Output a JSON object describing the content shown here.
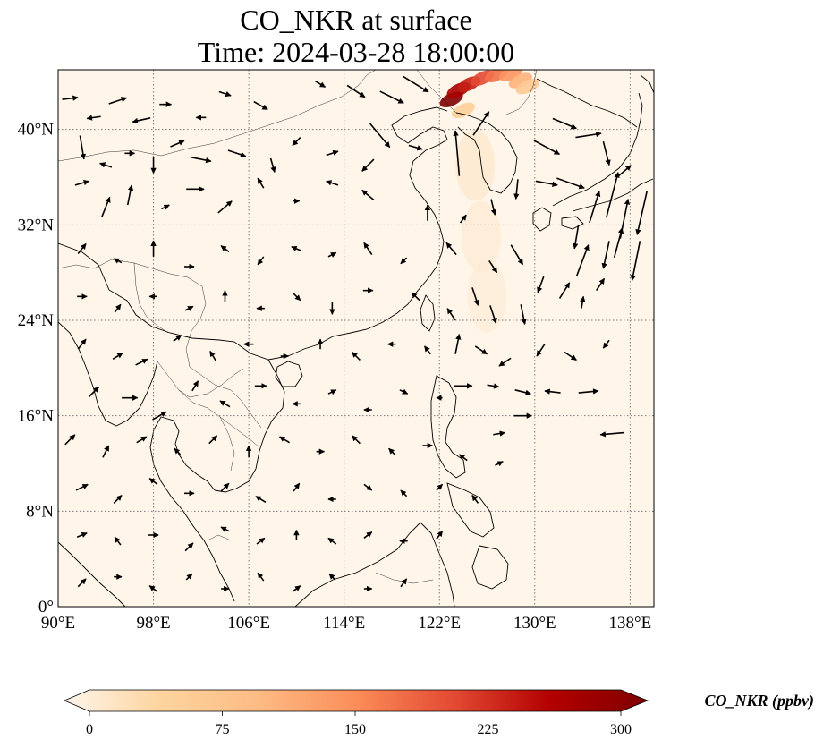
{
  "title": {
    "line1": "CO_NKR at surface",
    "line2": "Time: 2024-03-28 18:00:00"
  },
  "map": {
    "lon_range": [
      90,
      140
    ],
    "lat_range": [
      0,
      45
    ],
    "x_ticks": [
      {
        "lon": 90,
        "label": "90°E"
      },
      {
        "lon": 98,
        "label": "98°E"
      },
      {
        "lon": 106,
        "label": "106°E"
      },
      {
        "lon": 114,
        "label": "114°E"
      },
      {
        "lon": 122,
        "label": "122°E"
      },
      {
        "lon": 130,
        "label": "130°E"
      },
      {
        "lon": 138,
        "label": "138°E"
      }
    ],
    "y_ticks": [
      {
        "lat": 0,
        "label": "0°"
      },
      {
        "lat": 8,
        "label": "8°N"
      },
      {
        "lat": 16,
        "label": "16°N"
      },
      {
        "lat": 24,
        "label": "24°N"
      },
      {
        "lat": 32,
        "label": "32°N"
      },
      {
        "lat": 40,
        "label": "40°N"
      }
    ],
    "gridlines": true,
    "background_color": "#fff6e9",
    "coastline_color": "#000000",
    "grid_color": "#777777"
  },
  "colorbar": {
    "label": "CO_NKR (ppbv)",
    "min": 0,
    "max": 300,
    "ticks": [
      {
        "value": 0,
        "label": "0"
      },
      {
        "value": 75,
        "label": "75"
      },
      {
        "value": 150,
        "label": "150"
      },
      {
        "value": 225,
        "label": "225"
      },
      {
        "value": 300,
        "label": "300"
      }
    ],
    "colormap": [
      "#fff5eb",
      "#fdd49e",
      "#fdbb84",
      "#fc8d59",
      "#e34a33",
      "#b30000",
      "#7f0000"
    ],
    "extend": "both"
  },
  "plume": [
    {
      "lon": 123.0,
      "lat": 42.5,
      "value": 300
    },
    {
      "lon": 123.6,
      "lat": 43.3,
      "value": 260
    },
    {
      "lon": 124.5,
      "lat": 43.8,
      "value": 230
    },
    {
      "lon": 125.6,
      "lat": 44.3,
      "value": 200
    },
    {
      "lon": 126.8,
      "lat": 44.6,
      "value": 170
    },
    {
      "lon": 128.0,
      "lat": 44.7,
      "value": 140
    },
    {
      "lon": 128.8,
      "lat": 44.1,
      "value": 110
    },
    {
      "lon": 129.4,
      "lat": 43.6,
      "value": 70
    },
    {
      "lon": 124.0,
      "lat": 41.6,
      "value": 60
    },
    {
      "lon": 125.0,
      "lat": 37.0,
      "value": 25
    },
    {
      "lon": 125.5,
      "lat": 31.0,
      "value": 18
    },
    {
      "lon": 126.0,
      "lat": 26.0,
      "value": 15
    }
  ],
  "wind_vectors": [
    {
      "lon": 91.0,
      "lat": 42.6,
      "u": 0.8,
      "v": 0.1
    },
    {
      "lon": 93.0,
      "lat": 41.0,
      "u": -0.7,
      "v": -0.1
    },
    {
      "lon": 95.0,
      "lat": 42.4,
      "u": 0.9,
      "v": 0.3
    },
    {
      "lon": 97.0,
      "lat": 40.8,
      "u": -0.9,
      "v": -0.2
    },
    {
      "lon": 99.0,
      "lat": 42.1,
      "u": 0.6,
      "v": 0.0
    },
    {
      "lon": 102.0,
      "lat": 41.0,
      "u": -0.5,
      "v": 0.0
    },
    {
      "lon": 104.0,
      "lat": 43.0,
      "u": 0.6,
      "v": -0.2
    },
    {
      "lon": 107.0,
      "lat": 42.0,
      "u": 0.7,
      "v": -0.4
    },
    {
      "lon": 112.0,
      "lat": 43.8,
      "u": 0.5,
      "v": -0.3
    },
    {
      "lon": 115.0,
      "lat": 43.2,
      "u": 0.9,
      "v": -0.6
    },
    {
      "lon": 118.0,
      "lat": 42.7,
      "u": 1.2,
      "v": -0.6
    },
    {
      "lon": 120.0,
      "lat": 43.8,
      "u": 1.3,
      "v": -0.8
    },
    {
      "lon": 117.0,
      "lat": 39.5,
      "u": 1.0,
      "v": -1.2
    },
    {
      "lon": 92.0,
      "lat": 38.5,
      "u": 0.2,
      "v": -1.2
    },
    {
      "lon": 94.0,
      "lat": 37.0,
      "u": -0.6,
      "v": 0.2
    },
    {
      "lon": 96.0,
      "lat": 38.0,
      "u": 0.5,
      "v": 0.0
    },
    {
      "lon": 98.0,
      "lat": 37.0,
      "u": 0.0,
      "v": -0.8
    },
    {
      "lon": 100.0,
      "lat": 38.8,
      "u": 0.7,
      "v": 0.3
    },
    {
      "lon": 102.0,
      "lat": 37.5,
      "u": 1.0,
      "v": -0.2
    },
    {
      "lon": 105.0,
      "lat": 38.0,
      "u": 0.9,
      "v": -0.3
    },
    {
      "lon": 108.0,
      "lat": 37.0,
      "u": 0.2,
      "v": -0.7
    },
    {
      "lon": 110.0,
      "lat": 39.0,
      "u": -0.4,
      "v": -0.4
    },
    {
      "lon": 113.0,
      "lat": 38.0,
      "u": 0.6,
      "v": 0.2
    },
    {
      "lon": 116.0,
      "lat": 37.0,
      "u": -0.6,
      "v": -0.6
    },
    {
      "lon": 120.0,
      "lat": 38.5,
      "u": 0.7,
      "v": -0.2
    },
    {
      "lon": 123.5,
      "lat": 38.0,
      "u": -0.2,
      "v": 2.3
    },
    {
      "lon": 125.5,
      "lat": 40.5,
      "u": 0.8,
      "v": 1.2
    },
    {
      "lon": 92.0,
      "lat": 35.5,
      "u": 0.7,
      "v": 0.2
    },
    {
      "lon": 94.0,
      "lat": 33.5,
      "u": 0.4,
      "v": 1.0
    },
    {
      "lon": 96.0,
      "lat": 34.5,
      "u": 0.2,
      "v": 1.0
    },
    {
      "lon": 99.0,
      "lat": 33.5,
      "u": 0.4,
      "v": 0.2
    },
    {
      "lon": 101.5,
      "lat": 35.0,
      "u": 0.9,
      "v": 0.0
    },
    {
      "lon": 104.0,
      "lat": 33.5,
      "u": 0.7,
      "v": 0.6
    },
    {
      "lon": 107.0,
      "lat": 35.5,
      "u": -0.3,
      "v": 0.5
    },
    {
      "lon": 110.0,
      "lat": 34.0,
      "u": 0.3,
      "v": 0.0
    },
    {
      "lon": 113.0,
      "lat": 35.5,
      "u": -0.6,
      "v": 0.2
    },
    {
      "lon": 116.0,
      "lat": 34.5,
      "u": -0.6,
      "v": 0.5
    },
    {
      "lon": 121.0,
      "lat": 33.0,
      "u": 0.0,
      "v": 0.8
    },
    {
      "lon": 124.0,
      "lat": 32.5,
      "u": 0.3,
      "v": 0.4
    },
    {
      "lon": 126.5,
      "lat": 33.5,
      "u": 0.2,
      "v": -0.8
    },
    {
      "lon": 128.5,
      "lat": 35.0,
      "u": -0.1,
      "v": -1.0
    },
    {
      "lon": 131.0,
      "lat": 38.5,
      "u": 1.3,
      "v": -0.7
    },
    {
      "lon": 132.5,
      "lat": 40.5,
      "u": 1.2,
      "v": -0.5
    },
    {
      "lon": 134.5,
      "lat": 39.5,
      "u": 1.3,
      "v": 0.2
    },
    {
      "lon": 136.0,
      "lat": 38.0,
      "u": 0.3,
      "v": -1.2
    },
    {
      "lon": 137.5,
      "lat": 36.5,
      "u": 0.7,
      "v": 0.6
    },
    {
      "lon": 133.0,
      "lat": 35.5,
      "u": 1.4,
      "v": -0.5
    },
    {
      "lon": 131.0,
      "lat": 35.5,
      "u": 1.1,
      "v": -0.2
    },
    {
      "lon": 135.0,
      "lat": 33.5,
      "u": 0.5,
      "v": 1.6
    },
    {
      "lon": 136.5,
      "lat": 34.5,
      "u": 0.6,
      "v": 2.3
    },
    {
      "lon": 137.5,
      "lat": 32.5,
      "u": 0.4,
      "v": 2.0
    },
    {
      "lon": 139.0,
      "lat": 33.0,
      "u": -0.5,
      "v": -2.2
    },
    {
      "lon": 133.5,
      "lat": 31.0,
      "u": -0.2,
      "v": -1.2
    },
    {
      "lon": 134.0,
      "lat": 29.0,
      "u": 0.6,
      "v": 1.6
    },
    {
      "lon": 136.0,
      "lat": 29.5,
      "u": -0.3,
      "v": -1.4
    },
    {
      "lon": 137.0,
      "lat": 30.5,
      "u": 0.4,
      "v": 1.5
    },
    {
      "lon": 138.5,
      "lat": 29.0,
      "u": -0.4,
      "v": -2.0
    },
    {
      "lon": 135.5,
      "lat": 27.0,
      "u": 0.4,
      "v": 0.6
    },
    {
      "lon": 134.0,
      "lat": 25.5,
      "u": 0.1,
      "v": 0.6
    },
    {
      "lon": 132.5,
      "lat": 26.5,
      "u": 0.5,
      "v": 0.8
    },
    {
      "lon": 130.5,
      "lat": 27.0,
      "u": -0.3,
      "v": -0.8
    },
    {
      "lon": 92.0,
      "lat": 30.0,
      "u": 0.4,
      "v": 0.5
    },
    {
      "lon": 95.0,
      "lat": 29.0,
      "u": -0.4,
      "v": 0.2
    },
    {
      "lon": 98.0,
      "lat": 30.0,
      "u": 0.0,
      "v": 0.8
    },
    {
      "lon": 101.0,
      "lat": 28.5,
      "u": 0.5,
      "v": 0.0
    },
    {
      "lon": 104.0,
      "lat": 30.0,
      "u": -0.4,
      "v": 0.3
    },
    {
      "lon": 107.0,
      "lat": 29.0,
      "u": -0.3,
      "v": -0.4
    },
    {
      "lon": 110.0,
      "lat": 30.0,
      "u": -0.5,
      "v": 0.2
    },
    {
      "lon": 113.0,
      "lat": 29.5,
      "u": 0.4,
      "v": 0.2
    },
    {
      "lon": 116.0,
      "lat": 30.0,
      "u": -0.4,
      "v": 0.6
    },
    {
      "lon": 119.0,
      "lat": 29.0,
      "u": -0.3,
      "v": -0.3
    },
    {
      "lon": 123.0,
      "lat": 30.0,
      "u": -0.5,
      "v": 0.6
    },
    {
      "lon": 126.5,
      "lat": 28.5,
      "u": 0.4,
      "v": -0.6
    },
    {
      "lon": 128.5,
      "lat": 29.5,
      "u": 0.6,
      "v": -1.0
    },
    {
      "lon": 92.0,
      "lat": 26.0,
      "u": 0.5,
      "v": 0.0
    },
    {
      "lon": 95.0,
      "lat": 25.0,
      "u": 0.3,
      "v": 0.4
    },
    {
      "lon": 98.0,
      "lat": 26.0,
      "u": -0.4,
      "v": 0.0
    },
    {
      "lon": 101.0,
      "lat": 25.0,
      "u": 0.4,
      "v": 0.2
    },
    {
      "lon": 104.0,
      "lat": 26.0,
      "u": 0.0,
      "v": 0.6
    },
    {
      "lon": 107.0,
      "lat": 25.0,
      "u": -0.4,
      "v": 0.0
    },
    {
      "lon": 110.0,
      "lat": 26.0,
      "u": 0.4,
      "v": -0.4
    },
    {
      "lon": 113.0,
      "lat": 25.0,
      "u": 0.0,
      "v": -0.6
    },
    {
      "lon": 116.0,
      "lat": 26.5,
      "u": 0.5,
      "v": 0.0
    },
    {
      "lon": 120.0,
      "lat": 26.0,
      "u": -0.4,
      "v": 0.4
    },
    {
      "lon": 123.0,
      "lat": 24.5,
      "u": -0.4,
      "v": 0.6
    },
    {
      "lon": 125.0,
      "lat": 26.0,
      "u": 0.3,
      "v": -0.9
    },
    {
      "lon": 126.5,
      "lat": 24.5,
      "u": 0.3,
      "v": -0.9
    },
    {
      "lon": 129.0,
      "lat": 24.5,
      "u": 0.2,
      "v": -1.0
    },
    {
      "lon": 92.0,
      "lat": 22.0,
      "u": 0.4,
      "v": 0.5
    },
    {
      "lon": 95.0,
      "lat": 21.0,
      "u": 0.5,
      "v": 0.3
    },
    {
      "lon": 97.0,
      "lat": 20.5,
      "u": 0.6,
      "v": 0.3
    },
    {
      "lon": 100.0,
      "lat": 22.5,
      "u": 0.4,
      "v": 0.3
    },
    {
      "lon": 103.0,
      "lat": 21.0,
      "u": -0.3,
      "v": 0.5
    },
    {
      "lon": 106.0,
      "lat": 22.0,
      "u": -0.5,
      "v": 0.0
    },
    {
      "lon": 109.0,
      "lat": 21.0,
      "u": 0.4,
      "v": 0.0
    },
    {
      "lon": 112.0,
      "lat": 22.0,
      "u": 0.0,
      "v": 0.5
    },
    {
      "lon": 115.0,
      "lat": 21.0,
      "u": -0.4,
      "v": 0.4
    },
    {
      "lon": 118.0,
      "lat": 22.0,
      "u": -0.4,
      "v": 0.0
    },
    {
      "lon": 121.0,
      "lat": 21.5,
      "u": -0.3,
      "v": 0.4
    },
    {
      "lon": 123.5,
      "lat": 22.0,
      "u": 0.2,
      "v": 1.0
    },
    {
      "lon": 125.5,
      "lat": 21.5,
      "u": 0.6,
      "v": -0.4
    },
    {
      "lon": 127.5,
      "lat": 20.5,
      "u": -0.6,
      "v": -0.4
    },
    {
      "lon": 130.5,
      "lat": 21.5,
      "u": -0.4,
      "v": -0.6
    },
    {
      "lon": 133.0,
      "lat": 21.0,
      "u": 0.6,
      "v": -0.4
    },
    {
      "lon": 136.0,
      "lat": 22.0,
      "u": -0.3,
      "v": -0.4
    },
    {
      "lon": 93.0,
      "lat": 18.0,
      "u": 0.5,
      "v": 0.5
    },
    {
      "lon": 96.0,
      "lat": 17.5,
      "u": 0.8,
      "v": 0.0
    },
    {
      "lon": 98.5,
      "lat": 16.0,
      "u": 0.7,
      "v": 0.4
    },
    {
      "lon": 101.5,
      "lat": 18.5,
      "u": 0.3,
      "v": 0.5
    },
    {
      "lon": 104.0,
      "lat": 17.0,
      "u": -0.5,
      "v": 0.3
    },
    {
      "lon": 107.0,
      "lat": 18.5,
      "u": 0.6,
      "v": 0.0
    },
    {
      "lon": 110.0,
      "lat": 17.0,
      "u": -0.4,
      "v": 0.0
    },
    {
      "lon": 113.0,
      "lat": 18.0,
      "u": 0.4,
      "v": 0.2
    },
    {
      "lon": 116.0,
      "lat": 16.5,
      "u": -0.4,
      "v": 0.0
    },
    {
      "lon": 119.0,
      "lat": 18.0,
      "u": 0.4,
      "v": -0.2
    },
    {
      "lon": 122.0,
      "lat": 17.5,
      "u": -0.3,
      "v": 0.0
    },
    {
      "lon": 124.0,
      "lat": 18.5,
      "u": 0.9,
      "v": 0.0
    },
    {
      "lon": 126.5,
      "lat": 18.5,
      "u": 0.6,
      "v": -0.1
    },
    {
      "lon": 129.0,
      "lat": 18.0,
      "u": 0.8,
      "v": -0.2
    },
    {
      "lon": 131.5,
      "lat": 18.0,
      "u": -0.8,
      "v": 0.1
    },
    {
      "lon": 134.5,
      "lat": 18.0,
      "u": 1.0,
      "v": 0.1
    },
    {
      "lon": 129.0,
      "lat": 16.0,
      "u": 0.9,
      "v": 0.0
    },
    {
      "lon": 136.5,
      "lat": 14.5,
      "u": -1.2,
      "v": -0.1
    },
    {
      "lon": 127.0,
      "lat": 14.5,
      "u": 0.6,
      "v": 0.1
    },
    {
      "lon": 91.0,
      "lat": 14.0,
      "u": 0.5,
      "v": 0.5
    },
    {
      "lon": 94.0,
      "lat": 13.0,
      "u": 0.3,
      "v": 0.6
    },
    {
      "lon": 97.0,
      "lat": 14.0,
      "u": 0.5,
      "v": 0.3
    },
    {
      "lon": 100.0,
      "lat": 13.0,
      "u": -0.3,
      "v": 0.3
    },
    {
      "lon": 103.0,
      "lat": 14.0,
      "u": 0.4,
      "v": 0.4
    },
    {
      "lon": 106.0,
      "lat": 13.0,
      "u": 0.0,
      "v": 0.6
    },
    {
      "lon": 109.0,
      "lat": 14.0,
      "u": -0.5,
      "v": 0.3
    },
    {
      "lon": 112.0,
      "lat": 13.0,
      "u": 0.4,
      "v": 0.0
    },
    {
      "lon": 115.0,
      "lat": 14.0,
      "u": -0.4,
      "v": 0.4
    },
    {
      "lon": 118.0,
      "lat": 13.0,
      "u": -0.3,
      "v": 0.3
    },
    {
      "lon": 121.0,
      "lat": 13.5,
      "u": 0.5,
      "v": 0.0
    },
    {
      "lon": 124.0,
      "lat": 12.5,
      "u": -0.4,
      "v": 0.3
    },
    {
      "lon": 127.0,
      "lat": 12.0,
      "u": 0.4,
      "v": 0.2
    },
    {
      "lon": 92.0,
      "lat": 10.0,
      "u": 0.6,
      "v": 0.3
    },
    {
      "lon": 95.0,
      "lat": 9.0,
      "u": 0.4,
      "v": 0.4
    },
    {
      "lon": 98.0,
      "lat": 10.5,
      "u": -0.4,
      "v": 0.3
    },
    {
      "lon": 101.0,
      "lat": 9.5,
      "u": 0.5,
      "v": 0.0
    },
    {
      "lon": 104.0,
      "lat": 10.0,
      "u": 0.4,
      "v": 0.4
    },
    {
      "lon": 107.0,
      "lat": 9.0,
      "u": -0.5,
      "v": 0.3
    },
    {
      "lon": 110.0,
      "lat": 10.0,
      "u": 0.3,
      "v": 0.4
    },
    {
      "lon": 113.0,
      "lat": 9.0,
      "u": -0.4,
      "v": 0.0
    },
    {
      "lon": 116.0,
      "lat": 10.0,
      "u": 0.4,
      "v": -0.3
    },
    {
      "lon": 119.0,
      "lat": 9.5,
      "u": -0.3,
      "v": 0.3
    },
    {
      "lon": 122.0,
      "lat": 10.0,
      "u": 0.3,
      "v": 0.3
    },
    {
      "lon": 125.0,
      "lat": 9.0,
      "u": -0.3,
      "v": 0.4
    },
    {
      "lon": 92.0,
      "lat": 6.0,
      "u": 0.5,
      "v": 0.2
    },
    {
      "lon": 95.0,
      "lat": 5.5,
      "u": -0.3,
      "v": 0.4
    },
    {
      "lon": 98.0,
      "lat": 6.0,
      "u": 0.5,
      "v": 0.0
    },
    {
      "lon": 101.0,
      "lat": 5.0,
      "u": 0.4,
      "v": 0.4
    },
    {
      "lon": 104.0,
      "lat": 6.5,
      "u": -0.4,
      "v": 0.2
    },
    {
      "lon": 107.0,
      "lat": 5.5,
      "u": 0.4,
      "v": 0.3
    },
    {
      "lon": 110.0,
      "lat": 6.0,
      "u": 0.0,
      "v": 0.5
    },
    {
      "lon": 113.0,
      "lat": 5.5,
      "u": -0.4,
      "v": 0.3
    },
    {
      "lon": 116.0,
      "lat": 6.0,
      "u": 0.4,
      "v": 0.3
    },
    {
      "lon": 119.0,
      "lat": 5.5,
      "u": -0.4,
      "v": 0.0
    },
    {
      "lon": 122.0,
      "lat": 6.0,
      "u": 0.3,
      "v": 0.4
    },
    {
      "lon": 92.0,
      "lat": 2.0,
      "u": 0.4,
      "v": 0.4
    },
    {
      "lon": 95.0,
      "lat": 2.5,
      "u": 0.4,
      "v": 0.0
    },
    {
      "lon": 98.0,
      "lat": 1.5,
      "u": -0.4,
      "v": 0.3
    },
    {
      "lon": 101.0,
      "lat": 2.5,
      "u": 0.3,
      "v": 0.3
    },
    {
      "lon": 104.0,
      "lat": 1.5,
      "u": 0.4,
      "v": 0.0
    },
    {
      "lon": 107.0,
      "lat": 2.5,
      "u": -0.3,
      "v": 0.4
    },
    {
      "lon": 110.0,
      "lat": 1.5,
      "u": 0.4,
      "v": 0.3
    },
    {
      "lon": 113.0,
      "lat": 2.5,
      "u": -0.3,
      "v": 0.3
    },
    {
      "lon": 116.0,
      "lat": 1.5,
      "u": 0.4,
      "v": 0.0
    },
    {
      "lon": 119.0,
      "lat": 2.0,
      "u": 0.3,
      "v": 0.4
    }
  ]
}
